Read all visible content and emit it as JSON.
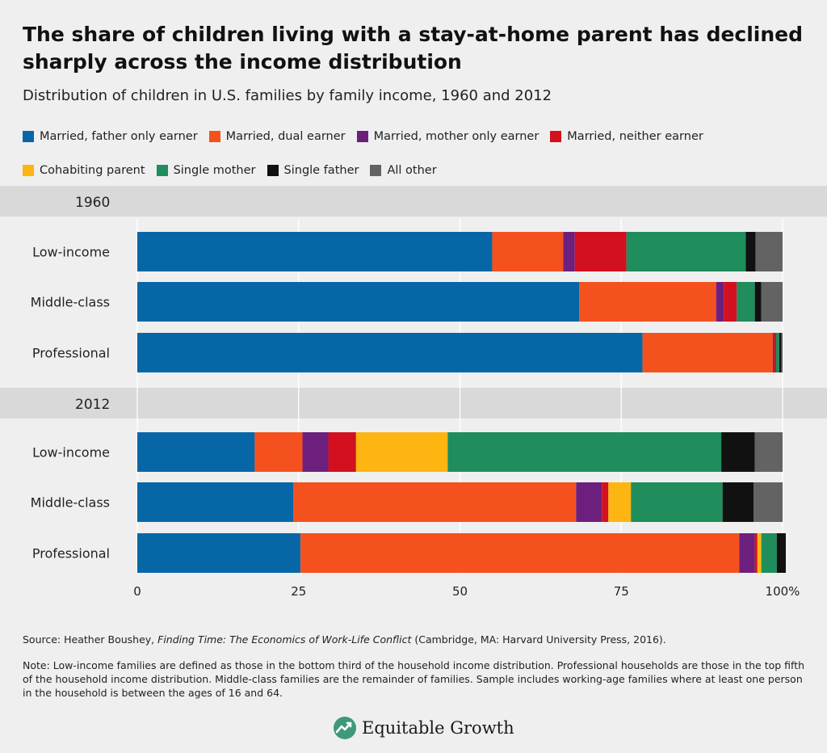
{
  "title": "The share of children living with a stay-at-home parent has declined sharply across the income distribution",
  "subtitle": "Distribution of children in U.S. families by family income, 1960 and 2012",
  "legend": [
    {
      "label": "Married, father only earner",
      "color": "#0767a6"
    },
    {
      "label": "Married, dual earner",
      "color": "#f5511e"
    },
    {
      "label": "Married, mother only earner",
      "color": "#6d1f7e"
    },
    {
      "label": "Married, neither earner",
      "color": "#d3101f"
    },
    {
      "label": "Cohabiting parent",
      "color": "#fdb511"
    },
    {
      "label": "Single mother",
      "color": "#1f8d5c"
    },
    {
      "label": "Single father",
      "color": "#111111"
    },
    {
      "label": "All other",
      "color": "#636363"
    }
  ],
  "source": {
    "prefix": "Source:  Heather Boushey,",
    "book": "Finding Time: The Economics of Work-Life Conflict",
    "suffix": "(Cambridge, MA: Harvard University Press, 2016)."
  },
  "note": "Note: Low-income families are defined as those in the bottom third of the household income distribution. Professional households are those in the top fifth of the household income distribution. Middle-class families are the remainder of families. Sample includes working-age families where at least one person in the household is between the ages of 16 and 64.",
  "brand": "Equitable Growth",
  "chart_data": {
    "type": "bar",
    "orientation": "horizontal",
    "stacked": true,
    "xlim": [
      0,
      100
    ],
    "xticks": [
      "0",
      "25",
      "50",
      "75",
      "100%"
    ],
    "xtick_values": [
      0,
      25,
      50,
      75,
      100
    ],
    "groups": [
      {
        "label": "1960",
        "categories": [
          "Low-income",
          "Middle-class",
          "Professional"
        ],
        "series": [
          {
            "name": "Married, father only earner",
            "values": [
              55.0,
              68.5,
              78.3
            ]
          },
          {
            "name": "Married, dual earner",
            "values": [
              11.0,
              21.2,
              20.2
            ]
          },
          {
            "name": "Married, mother only earner",
            "values": [
              1.8,
              1.2,
              0.2
            ]
          },
          {
            "name": "Married, neither earner",
            "values": [
              8.0,
              2.0,
              0.3
            ]
          },
          {
            "name": "Cohabiting parent",
            "values": [
              0.0,
              0.0,
              0.0
            ]
          },
          {
            "name": "Single mother",
            "values": [
              18.5,
              2.8,
              0.5
            ]
          },
          {
            "name": "Single father",
            "values": [
              1.5,
              1.0,
              0.3
            ]
          },
          {
            "name": "All other",
            "values": [
              4.2,
              3.3,
              0.2
            ]
          }
        ]
      },
      {
        "label": "2012",
        "categories": [
          "Low-income",
          "Middle-class",
          "Professional"
        ],
        "series": [
          {
            "name": "Married, father only earner",
            "values": [
              18.2,
              24.2,
              25.3
            ]
          },
          {
            "name": "Married, dual earner",
            "values": [
              7.4,
              43.8,
              68.0
            ]
          },
          {
            "name": "Married, mother only earner",
            "values": [
              4.0,
              4.0,
              2.4
            ]
          },
          {
            "name": "Married, neither earner",
            "values": [
              4.3,
              1.0,
              0.4
            ]
          },
          {
            "name": "Cohabiting parent",
            "values": [
              14.2,
              3.5,
              0.6
            ]
          },
          {
            "name": "Single mother",
            "values": [
              42.4,
              14.2,
              2.4
            ]
          },
          {
            "name": "Single father",
            "values": [
              5.2,
              4.8,
              1.4
            ]
          },
          {
            "name": "All other",
            "values": [
              4.3,
              4.5,
              0.0
            ]
          }
        ]
      }
    ]
  }
}
